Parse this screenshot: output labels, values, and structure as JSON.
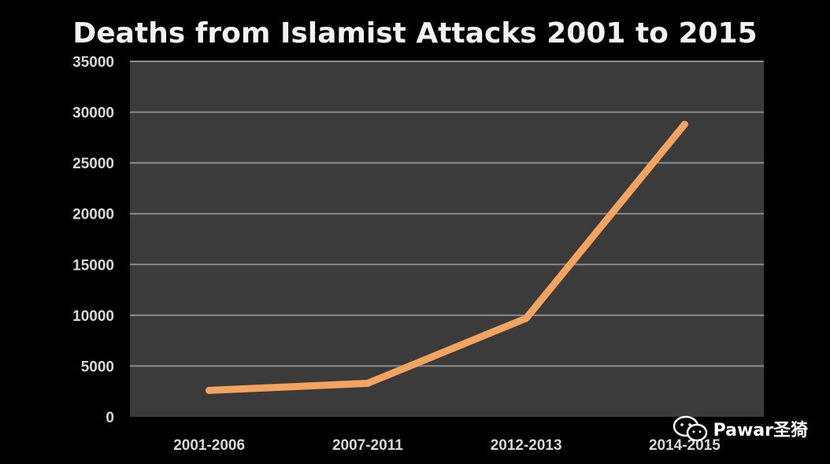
{
  "chart_data": {
    "type": "line",
    "title": "Deaths from Islamist Attacks 2001 to 2015",
    "categories": [
      "2001-2006",
      "2007-2011",
      "2012-2013",
      "2014-2015"
    ],
    "series": [
      {
        "values": [
          2600,
          3300,
          9700,
          28800
        ]
      }
    ],
    "ylim": [
      0,
      35000
    ],
    "yticks": [
      "0",
      "5000",
      "10000",
      "15000",
      "20000",
      "25000",
      "30000",
      "35000"
    ],
    "grid": true,
    "legend": "none",
    "colors": {
      "background": "#000000",
      "plot_area": "#3b3b3b",
      "gridline": "#8c8c8c",
      "line": "#f5a460"
    }
  },
  "watermark": {
    "text": "Pawar圣猗",
    "icon": "wechat-icon"
  }
}
